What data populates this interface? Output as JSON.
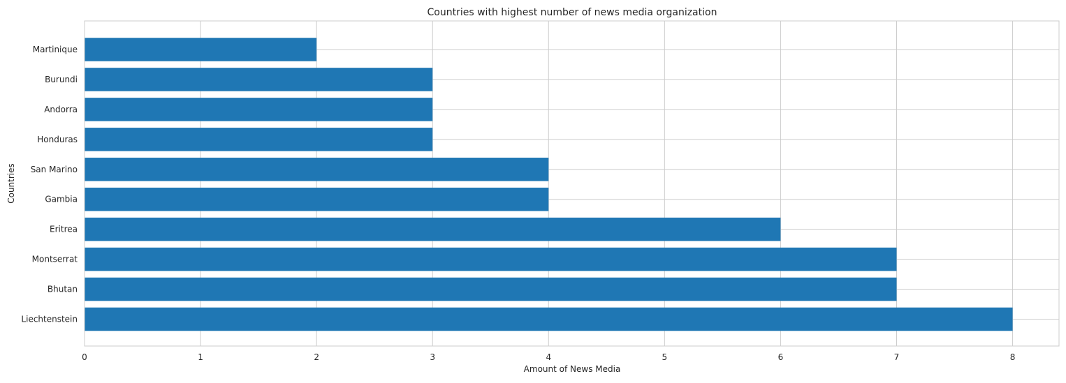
{
  "chart_data": {
    "type": "bar",
    "orientation": "horizontal",
    "title": "Countries with highest number of news media organization",
    "xlabel": "Amount of News Media",
    "ylabel": "Countries",
    "categories": [
      "Liechtenstein",
      "Bhutan",
      "Montserrat",
      "Eritrea",
      "Gambia",
      "San Marino",
      "Honduras",
      "Andorra",
      "Burundi",
      "Martinique"
    ],
    "values": [
      8,
      7,
      7,
      6,
      4,
      4,
      3,
      3,
      3,
      2
    ],
    "xlim": [
      0,
      8.4
    ],
    "xticks": [
      0,
      1,
      2,
      3,
      4,
      5,
      6,
      7,
      8
    ],
    "grid": true,
    "bar_color": "#1f77b4",
    "grid_color": "#cccccc",
    "spine_color": "#cccccc"
  }
}
